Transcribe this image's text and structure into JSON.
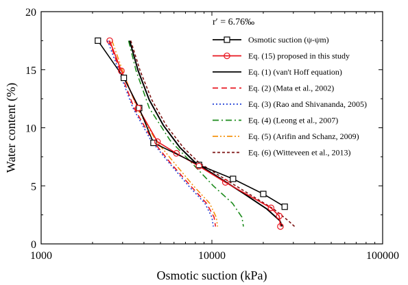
{
  "chart_data": {
    "type": "line",
    "xlabel": "Osmotic suction (kPa)",
    "ylabel": "Water content (%)",
    "xscale": "log",
    "xlim": [
      1000,
      100000
    ],
    "ylim": [
      0,
      20
    ],
    "xticks": [
      1000,
      10000,
      100000
    ],
    "xtick_labels": [
      "1000",
      "10000",
      "100000"
    ],
    "yticks": [
      0,
      5,
      10,
      15,
      20
    ],
    "ytick_labels": [
      "0",
      "5",
      "10",
      "15",
      "20"
    ],
    "annotation": "r′ = 6.76‰",
    "legend_position": "top-right",
    "series": [
      {
        "name": "Osmotic suction (ψ-ψm)",
        "color": "#000000",
        "dash": "solid",
        "marker": "square",
        "x": [
          2150,
          3050,
          3750,
          4550,
          8400,
          13300,
          20000,
          26700
        ],
        "y": [
          17.5,
          14.3,
          11.7,
          8.7,
          6.8,
          5.6,
          4.3,
          3.2
        ]
      },
      {
        "name": "Eq. (15) proposed in this study",
        "color": "#e8141e",
        "dash": "solid",
        "marker": "circle",
        "x": [
          2520,
          2950,
          3700,
          4800,
          6200,
          8400,
          12000,
          22200,
          24800,
          25200
        ],
        "y": [
          17.5,
          14.9,
          11.7,
          8.8,
          7.8,
          6.7,
          5.3,
          3.1,
          2.4,
          1.5
        ]
      },
      {
        "name": "Eq. (1) (van't Hoff equation)",
        "color": "#000000",
        "dash": "solid",
        "marker": "none",
        "x": [
          3300,
          3700,
          4300,
          5200,
          6500,
          8000,
          10500,
          15500,
          21000,
          25000,
          25800
        ],
        "y": [
          17.5,
          14.9,
          12.4,
          10.2,
          8.3,
          7.0,
          5.9,
          4.3,
          3.0,
          2.0,
          1.5
        ]
      },
      {
        "name": "Eq. (2) (Mata et al., 2002)",
        "color": "#e8141e",
        "dash": "dash",
        "marker": "none",
        "x": [
          2500,
          2900,
          3500,
          4500,
          5700,
          7500,
          9300,
          10300,
          10500
        ],
        "y": [
          17.5,
          14.9,
          11.7,
          8.9,
          7.0,
          5.0,
          3.5,
          2.3,
          1.5
        ]
      },
      {
        "name": "Eq. (3) (Rao and Shivananda, 2005)",
        "color": "#1f3fd6",
        "dash": "dot",
        "marker": "none",
        "x": [
          2450,
          2850,
          3450,
          4400,
          5600,
          7300,
          9100,
          10000,
          10200
        ],
        "y": [
          17.5,
          14.9,
          11.7,
          8.9,
          7.0,
          5.0,
          3.5,
          2.3,
          1.5
        ]
      },
      {
        "name": "Eq. (4) (Leong et al., 2007)",
        "color": "#1a8a1a",
        "dash": "dashdot",
        "marker": "none",
        "x": [
          3250,
          3600,
          4300,
          5700,
          7600,
          10200,
          13200,
          15000,
          15300
        ],
        "y": [
          17.5,
          14.9,
          11.7,
          8.9,
          7.0,
          5.0,
          3.5,
          2.3,
          1.5
        ]
      },
      {
        "name": "Eq. (5) (Arifin and Schanz, 2009)",
        "color": "#f5920f",
        "dash": "dashdotdot",
        "marker": "none",
        "x": [
          2600,
          3000,
          3650,
          4700,
          6000,
          7800,
          9700,
          10600,
          10800
        ],
        "y": [
          17.5,
          14.9,
          11.7,
          8.9,
          7.0,
          5.0,
          3.5,
          2.3,
          1.5
        ]
      },
      {
        "name": "Eq. (6) (Witteveen et al., 2013)",
        "color": "#7b1010",
        "dash": "shortdash",
        "marker": "none",
        "x": [
          3350,
          3800,
          4450,
          5400,
          6800,
          8400,
          11000,
          16500,
          23000,
          28000,
          30500
        ],
        "y": [
          17.5,
          14.9,
          12.4,
          10.2,
          8.3,
          7.0,
          5.9,
          4.3,
          3.0,
          2.0,
          1.5
        ]
      }
    ]
  }
}
